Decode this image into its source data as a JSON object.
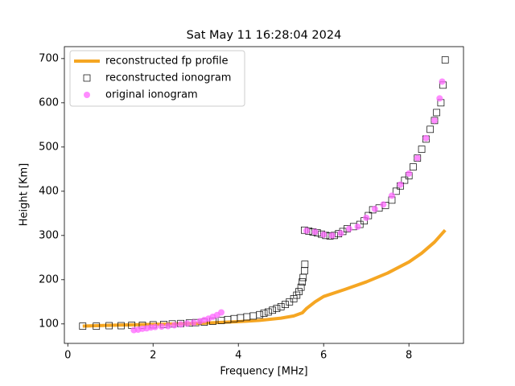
{
  "chart_data": {
    "type": "scatter",
    "title": "Sat May 11 16:28:04 2024",
    "x_label": "Frequency [MHz]",
    "y_label": "Height [Km]",
    "xlim": [
      -0.08,
      9.28
    ],
    "ylim": [
      56,
      727
    ],
    "xticks": [
      0,
      2,
      4,
      6,
      8
    ],
    "yticks": [
      100,
      200,
      300,
      400,
      500,
      600,
      700
    ],
    "legend": "upper left",
    "series": [
      {
        "name": "reconstructed fp profile",
        "color": "#f5a623",
        "style": "line",
        "x": [
          0.35,
          1,
          2,
          3,
          4,
          4.5,
          5,
          5.3,
          5.5,
          5.6,
          5.8,
          6,
          6.5,
          7,
          7.5,
          8,
          8.3,
          8.6,
          8.85
        ],
        "values": [
          95,
          97,
          99,
          101,
          105,
          108,
          113,
          118,
          125,
          135,
          150,
          162,
          178,
          195,
          215,
          240,
          260,
          285,
          312
        ]
      },
      {
        "name": "reconstructed ionogram",
        "color": "#000000",
        "style": "square",
        "x": [
          0.35,
          0.67,
          0.97,
          1.25,
          1.5,
          1.75,
          2.0,
          2.25,
          2.45,
          2.65,
          2.85,
          3.0,
          3.2,
          3.4,
          3.6,
          3.75,
          3.9,
          4.05,
          4.2,
          4.35,
          4.5,
          4.6,
          4.7,
          4.8,
          4.9,
          5.0,
          5.1,
          5.2,
          5.3,
          5.37,
          5.42,
          5.47,
          5.5,
          5.52,
          5.55,
          5.56,
          5.55,
          5.65,
          5.75,
          5.85,
          5.95,
          6.05,
          6.15,
          6.25,
          6.35,
          6.45,
          6.55,
          6.7,
          6.85,
          6.95,
          7.05,
          7.15,
          7.3,
          7.45,
          7.6,
          7.7,
          7.8,
          7.9,
          8.0,
          8.1,
          8.2,
          8.3,
          8.4,
          8.5,
          8.6,
          8.65,
          8.75,
          8.8,
          8.85
        ],
        "values": [
          95,
          95,
          96,
          96,
          97,
          97,
          98,
          99,
          100,
          101,
          102,
          103,
          104,
          106,
          108,
          110,
          112,
          114,
          116,
          118,
          121,
          124,
          127,
          131,
          135,
          139,
          144,
          150,
          157,
          165,
          173,
          183,
          195,
          205,
          220,
          235,
          312,
          310,
          308,
          306,
          303,
          300,
          299,
          300,
          304,
          309,
          315,
          320,
          325,
          333,
          345,
          358,
          362,
          368,
          380,
          400,
          412,
          425,
          435,
          455,
          475,
          495,
          518,
          540,
          560,
          578,
          600,
          640,
          697
        ]
      },
      {
        "name": "original ionogram",
        "color": "#ff66ff",
        "style": "circle",
        "x": [
          1.55,
          1.65,
          1.75,
          1.85,
          1.95,
          2.05,
          2.2,
          2.35,
          2.5,
          2.65,
          2.8,
          2.95,
          3.1,
          3.2,
          3.3,
          3.4,
          3.5,
          3.6,
          5.6,
          5.8,
          6.0,
          6.2,
          6.4,
          6.6,
          6.8,
          7.0,
          7.2,
          7.4,
          7.6,
          7.8,
          8.0,
          8.2,
          8.4,
          8.6,
          8.72,
          8.78
        ],
        "values": [
          86,
          87,
          89,
          90,
          92,
          93,
          94,
          95,
          97,
          99,
          101,
          103,
          106,
          109,
          112,
          116,
          120,
          126,
          311,
          308,
          302,
          300,
          305,
          315,
          320,
          340,
          360,
          370,
          390,
          415,
          440,
          475,
          520,
          560,
          610,
          648
        ]
      }
    ]
  }
}
